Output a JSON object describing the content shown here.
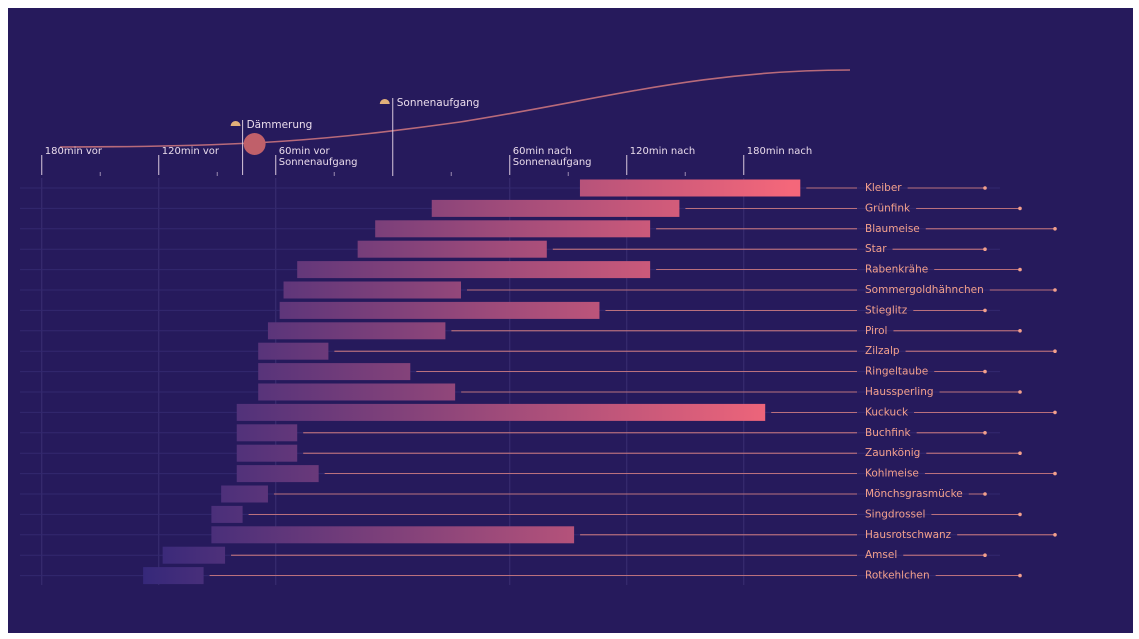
{
  "chart_data": {
    "type": "range-bar",
    "categories": [
      "Kleiber",
      "Grünfink",
      "Blaumeise",
      "Star",
      "Rabenkrähe",
      "Sommergoldhähnchen",
      "Stieglitz",
      "Pirol",
      "Zilzalp",
      "Ringeltaube",
      "Haussperling",
      "Kuckuck",
      "Buchfink",
      "Zaunkönig",
      "Kohlmeise",
      "Mönchsgrasmücke",
      "Singdrossel",
      "Hausrotschwanz",
      "Amsel",
      "Rotkehlchen"
    ],
    "start": [
      96,
      20,
      -9,
      -18,
      -49,
      -56,
      -58,
      -64,
      -69,
      -69,
      -69,
      -80,
      -80,
      -80,
      -80,
      -88,
      -93,
      -93,
      -118,
      -128
    ],
    "end": [
      209,
      147,
      132,
      79,
      132,
      35,
      106,
      27,
      -33,
      9,
      32,
      191,
      -49,
      -49,
      -38,
      -64,
      -77,
      93,
      -86,
      -97
    ],
    "color_start": "#35287a",
    "color_end": "#f4677a",
    "xlim": [
      -185,
      215
    ],
    "xticks": [
      {
        "value": -180,
        "label": "180min vor"
      },
      {
        "value": -120,
        "label": "120min vor"
      },
      {
        "value": -60,
        "label": "60min vor Sonnenaufgang"
      },
      {
        "value": 60,
        "label": "60min nach Sonnenaufgang"
      },
      {
        "value": 120,
        "label": "120min nach"
      },
      {
        "value": 180,
        "label": "180min nach"
      }
    ],
    "xminorticks": [
      -150,
      -90,
      -30,
      30,
      90,
      150
    ],
    "annotations": [
      {
        "text": "Dämmerung",
        "x": -77
      },
      {
        "text": "Sonnenaufgang",
        "x": 0
      }
    ]
  }
}
